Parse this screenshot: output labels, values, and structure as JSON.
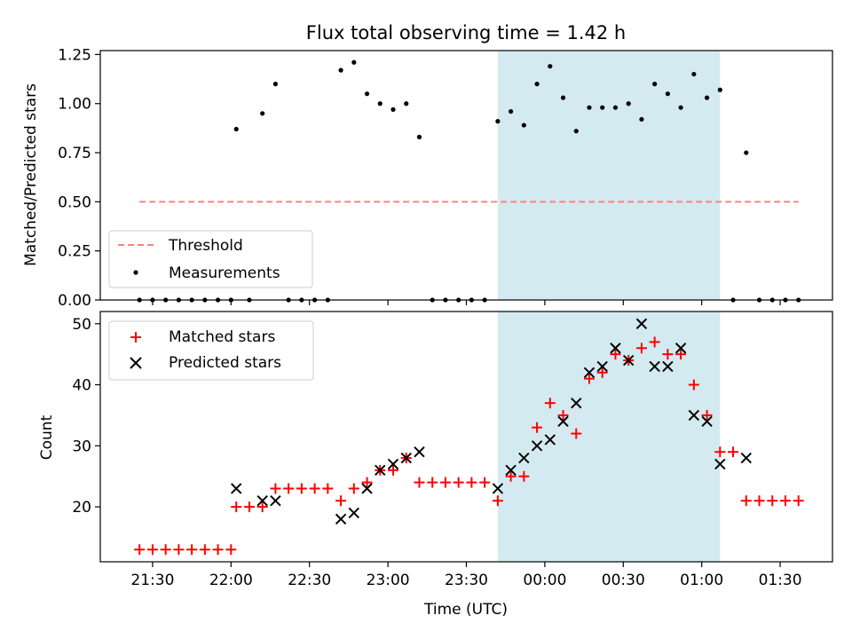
{
  "chart_data": [
    {
      "type": "scatter",
      "title": "Flux total observing time = 1.42 h",
      "xlabel": "",
      "ylabel": "Matched/Predicted stars",
      "xlim": [
        "21:10",
        "01:50"
      ],
      "ylim": [
        0,
        1.27
      ],
      "yticks": [
        0.0,
        0.25,
        0.5,
        0.75,
        1.0,
        1.25
      ],
      "ytick_labels": [
        "0.00",
        "0.25",
        "0.50",
        "0.75",
        "1.00",
        "1.25"
      ],
      "shaded_region": {
        "start": "23:42",
        "end": "01:07",
        "color": "#d4eaf1"
      },
      "threshold": {
        "name": "Threshold",
        "value": 0.5,
        "start": "21:25",
        "end": "01:37",
        "color": "#ff8080"
      },
      "series": [
        {
          "name": "Measurements",
          "color": "#000000",
          "x": [
            "21:25",
            "21:30",
            "21:35",
            "21:40",
            "21:45",
            "21:50",
            "21:55",
            "22:00",
            "22:02",
            "22:07",
            "22:12",
            "22:17",
            "22:22",
            "22:27",
            "22:32",
            "22:37",
            "22:42",
            "22:47",
            "22:52",
            "22:57",
            "23:02",
            "23:07",
            "23:12",
            "23:17",
            "23:22",
            "23:27",
            "23:32",
            "23:37",
            "23:42",
            "23:47",
            "23:52",
            "23:57",
            "00:02",
            "00:07",
            "00:12",
            "00:17",
            "00:22",
            "00:27",
            "00:32",
            "00:37",
            "00:42",
            "00:47",
            "00:52",
            "00:57",
            "01:02",
            "01:07",
            "01:12",
            "01:17",
            "01:22",
            "01:27",
            "01:32",
            "01:37"
          ],
          "y": [
            0,
            0,
            0,
            0,
            0,
            0,
            0,
            0,
            0.87,
            0,
            0.95,
            1.1,
            0,
            0,
            0,
            0,
            1.17,
            1.21,
            1.05,
            1.0,
            0.97,
            1.0,
            0.83,
            0,
            0,
            0,
            0,
            0,
            0.91,
            0.96,
            0.89,
            1.1,
            1.19,
            1.03,
            0.86,
            0.98,
            0.98,
            0.98,
            1.0,
            0.92,
            1.1,
            1.05,
            0.98,
            1.15,
            1.03,
            1.07,
            0,
            0.75,
            0,
            0,
            0,
            0
          ]
        }
      ],
      "legend": {
        "position": "lower-left",
        "entries": [
          "Threshold",
          "Measurements"
        ]
      }
    },
    {
      "type": "scatter",
      "title": "",
      "xlabel": "Time (UTC)",
      "ylabel": "Count",
      "xlim": [
        "21:10",
        "01:50"
      ],
      "ylim": [
        11,
        52
      ],
      "yticks": [
        20,
        30,
        40,
        50
      ],
      "xticks": [
        "21:30",
        "22:00",
        "22:30",
        "23:00",
        "23:30",
        "00:00",
        "00:30",
        "01:00",
        "01:30"
      ],
      "shaded_region": {
        "start": "23:42",
        "end": "01:07",
        "color": "#d4eaf1"
      },
      "series": [
        {
          "name": "Matched stars",
          "marker": "+",
          "color": "#ff0000",
          "x": [
            "21:25",
            "21:30",
            "21:35",
            "21:40",
            "21:45",
            "21:50",
            "21:55",
            "22:00",
            "22:02",
            "22:07",
            "22:12",
            "22:17",
            "22:22",
            "22:27",
            "22:32",
            "22:37",
            "22:42",
            "22:47",
            "22:52",
            "22:57",
            "23:02",
            "23:07",
            "23:12",
            "23:17",
            "23:22",
            "23:27",
            "23:32",
            "23:37",
            "23:42",
            "23:47",
            "23:52",
            "23:57",
            "00:02",
            "00:07",
            "00:12",
            "00:17",
            "00:22",
            "00:27",
            "00:32",
            "00:37",
            "00:42",
            "00:47",
            "00:52",
            "00:57",
            "01:02",
            "01:07",
            "01:12",
            "01:17",
            "01:22",
            "01:27",
            "01:32",
            "01:37"
          ],
          "y": [
            13,
            13,
            13,
            13,
            13,
            13,
            13,
            13,
            20,
            20,
            20,
            23,
            23,
            23,
            23,
            23,
            21,
            23,
            24,
            26,
            26,
            28,
            24,
            24,
            24,
            24,
            24,
            24,
            21,
            25,
            25,
            33,
            37,
            35,
            32,
            41,
            42,
            45,
            44,
            46,
            47,
            45,
            45,
            40,
            35,
            29,
            29,
            21,
            21,
            21,
            21,
            21
          ]
        },
        {
          "name": "Predicted stars",
          "marker": "x",
          "color": "#000000",
          "x": [
            "22:02",
            "22:12",
            "22:17",
            "22:42",
            "22:47",
            "22:52",
            "22:57",
            "23:02",
            "23:07",
            "23:12",
            "23:42",
            "23:47",
            "23:52",
            "23:57",
            "00:02",
            "00:07",
            "00:12",
            "00:17",
            "00:22",
            "00:27",
            "00:32",
            "00:37",
            "00:42",
            "00:47",
            "00:52",
            "00:57",
            "01:02",
            "01:07",
            "01:17"
          ],
          "y": [
            23,
            21,
            21,
            18,
            19,
            23,
            26,
            27,
            28,
            29,
            23,
            26,
            28,
            30,
            31,
            34,
            37,
            42,
            43,
            46,
            44,
            50,
            43,
            43,
            46,
            35,
            34,
            27,
            28
          ]
        }
      ],
      "legend": {
        "position": "top-left",
        "entries": [
          "Matched stars",
          "Predicted stars"
        ]
      }
    }
  ]
}
